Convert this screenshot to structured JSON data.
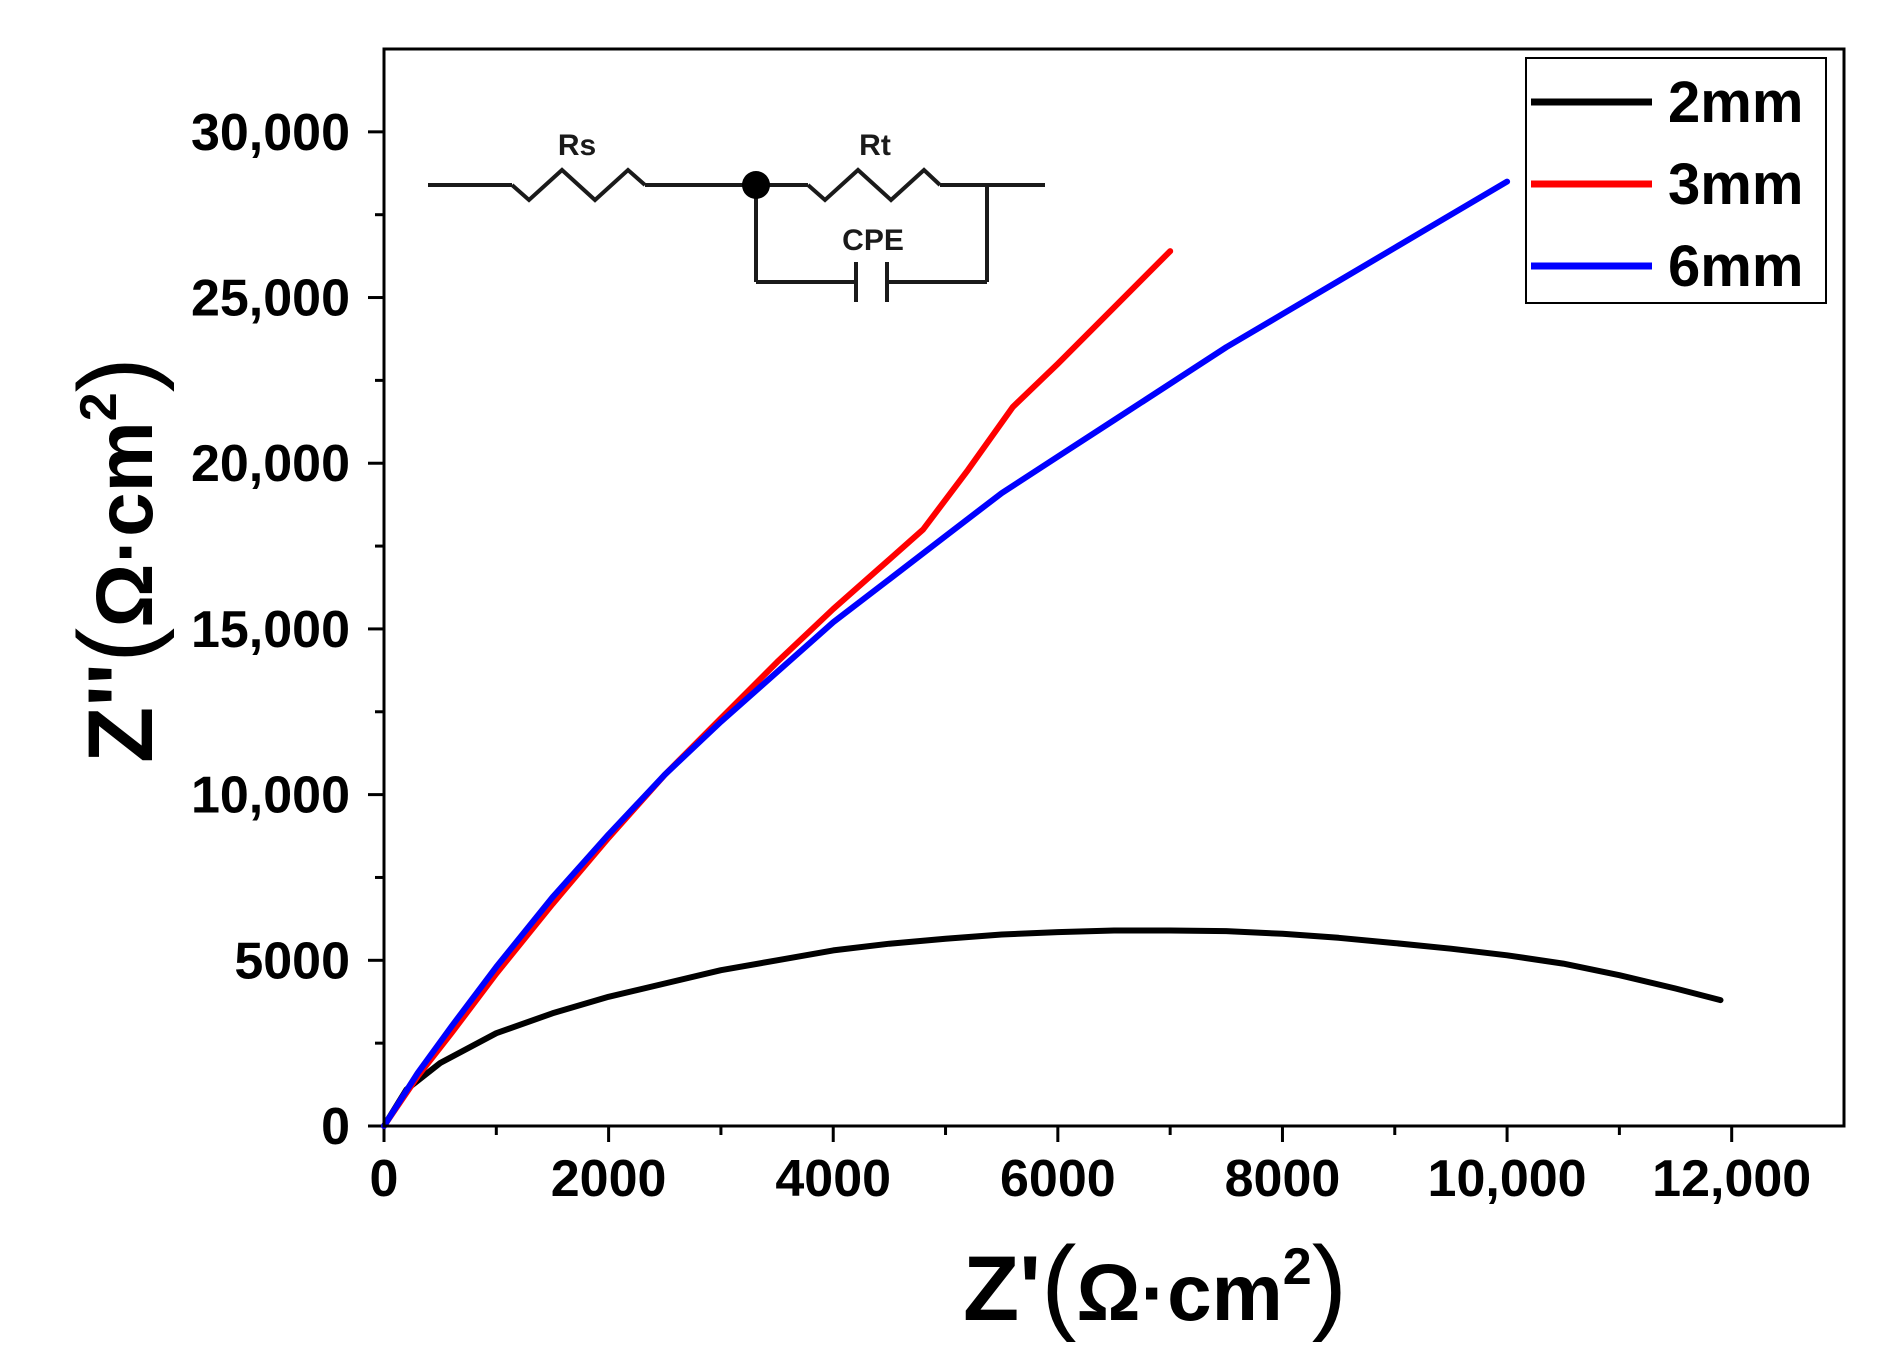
{
  "chart_data": {
    "type": "line",
    "title": "",
    "xlabel": "Z'(Ω·cm²)",
    "ylabel": "Z''(Ω·cm²)",
    "xlabel_main": "Z'",
    "ylabel_main": "Z''",
    "axis_unit_open": "(",
    "axis_unit_symbol": "Ω·cm",
    "axis_unit_exp": "2",
    "axis_unit_close": ")",
    "xlim": [
      0,
      13000
    ],
    "ylim": [
      0,
      32500
    ],
    "x_ticks": [
      0,
      2000,
      4000,
      6000,
      8000,
      10000,
      12000
    ],
    "x_tick_labels": [
      "0",
      "2000",
      "4000",
      "6000",
      "8000",
      "10,000",
      "12,000"
    ],
    "y_ticks": [
      0,
      5000,
      10000,
      15000,
      20000,
      25000,
      30000
    ],
    "y_tick_labels": [
      "0",
      "5000",
      "10,000",
      "15,000",
      "20,000",
      "25,000",
      "30,000"
    ],
    "grid": false,
    "legend_position": "top-right",
    "series": [
      {
        "name": "2mm",
        "color": "#000000",
        "x": [
          0,
          200,
          500,
          1000,
          1500,
          2000,
          2500,
          3000,
          3500,
          4000,
          4500,
          5000,
          5500,
          6000,
          6500,
          7000,
          7500,
          8000,
          8500,
          9000,
          9500,
          10000,
          10500,
          11000,
          11500,
          11900
        ],
        "y": [
          0,
          1100,
          1900,
          2800,
          3400,
          3900,
          4300,
          4700,
          5000,
          5300,
          5500,
          5650,
          5780,
          5850,
          5900,
          5900,
          5880,
          5800,
          5680,
          5520,
          5350,
          5150,
          4900,
          4550,
          4150,
          3800
        ]
      },
      {
        "name": "3mm",
        "color": "#ff0000",
        "x": [
          0,
          300,
          600,
          1000,
          1500,
          2000,
          2500,
          3000,
          3500,
          4000,
          4400,
          4800,
          5200,
          5600,
          6000,
          6500,
          7000
        ],
        "y": [
          0,
          1500,
          2800,
          4600,
          6700,
          8700,
          10600,
          12300,
          14000,
          15600,
          16800,
          18000,
          19800,
          21700,
          23000,
          24700,
          26400
        ]
      },
      {
        "name": "6mm",
        "color": "#0000ff",
        "x": [
          0,
          300,
          600,
          1000,
          1500,
          2000,
          2500,
          3000,
          3500,
          4000,
          4500,
          5000,
          5500,
          6000,
          6500,
          7000,
          7500,
          8000,
          8500,
          9000,
          9500,
          10000
        ],
        "y": [
          0,
          1600,
          3000,
          4800,
          6900,
          8800,
          10600,
          12200,
          13700,
          15200,
          16500,
          17800,
          19100,
          20200,
          21300,
          22400,
          23500,
          24500,
          25500,
          26500,
          27500,
          28500
        ]
      }
    ]
  },
  "circuit": {
    "rs_label": "Rs",
    "rt_label": "Rt",
    "cpe_label": "CPE"
  }
}
